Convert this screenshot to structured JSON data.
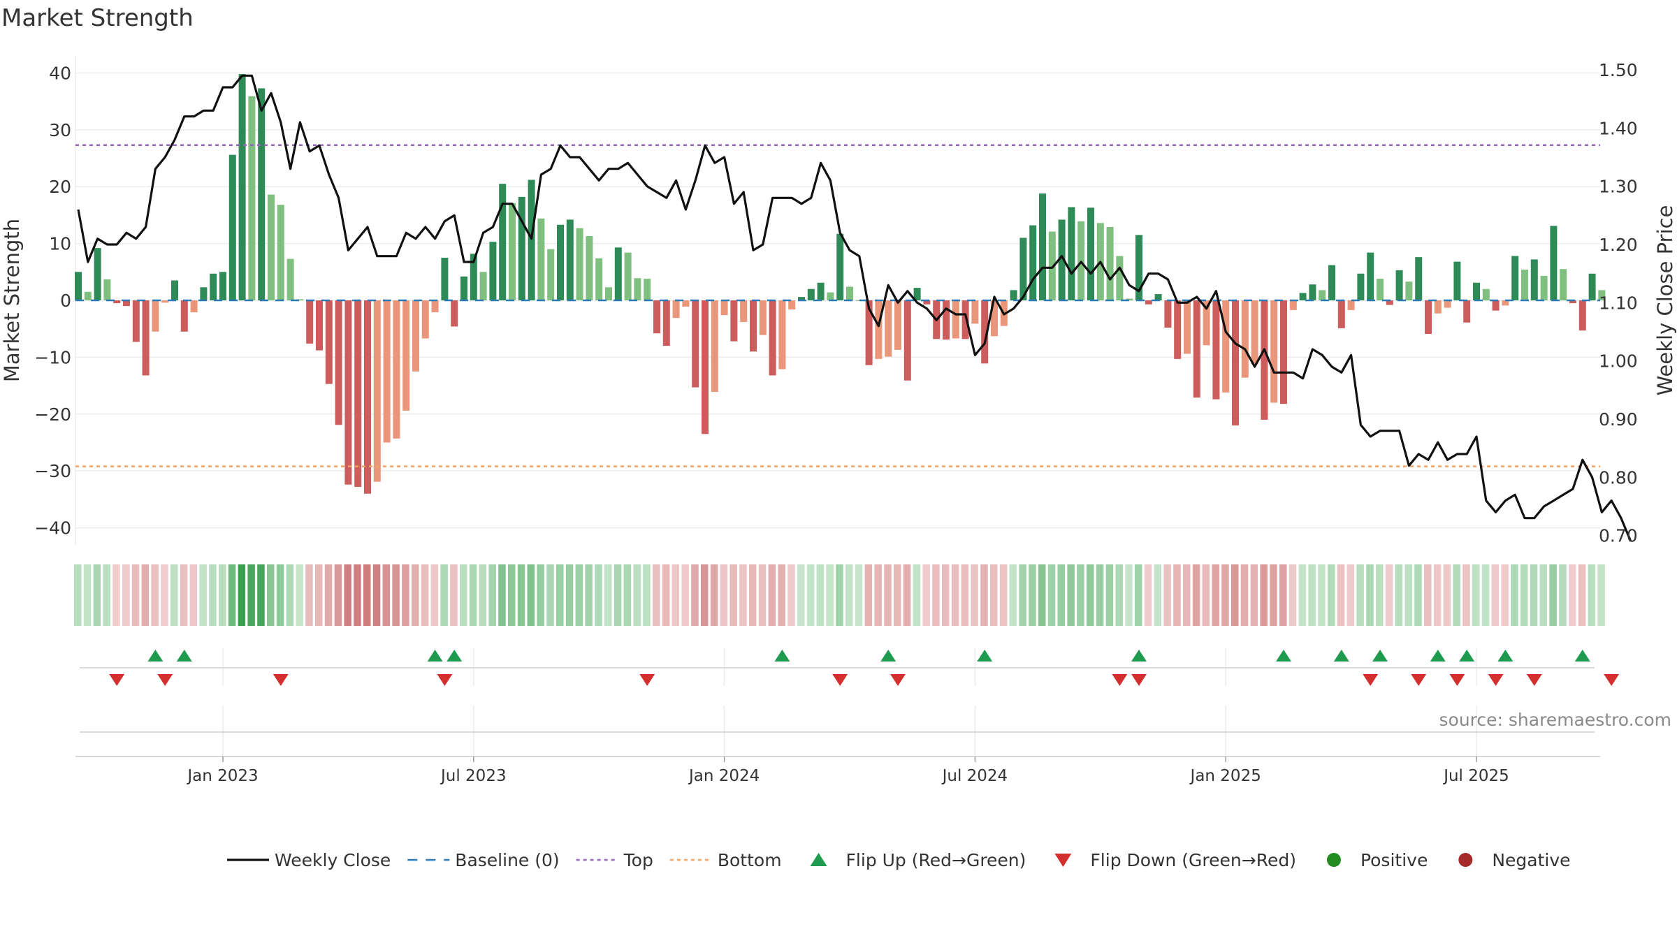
{
  "chart_data": {
    "type": "bar",
    "title": "Market Strength",
    "ylabel_left": "Market Strength",
    "ylabel_right": "Weekly Close Price",
    "ylim_left": [
      -43,
      43
    ],
    "ylim_right": [
      0.684,
      1.524
    ],
    "yticks_left": [
      {
        "v": 40,
        "label": "40"
      },
      {
        "v": 30,
        "label": "30"
      },
      {
        "v": 20,
        "label": "20"
      },
      {
        "v": 10,
        "label": "10"
      },
      {
        "v": 0,
        "label": "0"
      },
      {
        "v": -10,
        "label": "−10"
      },
      {
        "v": -20,
        "label": "−20"
      },
      {
        "v": -30,
        "label": "−30"
      },
      {
        "v": -40,
        "label": "−40"
      }
    ],
    "yticks_right": [
      {
        "v": 1.5,
        "label": "1.50"
      },
      {
        "v": 1.4,
        "label": "1.40"
      },
      {
        "v": 1.3,
        "label": "1.30"
      },
      {
        "v": 1.2,
        "label": "1.20"
      },
      {
        "v": 1.1,
        "label": "1.10"
      },
      {
        "v": 1.0,
        "label": "1.00"
      },
      {
        "v": 0.9,
        "label": "0.90"
      },
      {
        "v": 0.8,
        "label": "0.80"
      },
      {
        "v": 0.7,
        "label": "0.70"
      }
    ],
    "x_tick_labels": [
      {
        "i": 15,
        "label": "Jan 2023"
      },
      {
        "i": 41,
        "label": "Jul 2023"
      },
      {
        "i": 67,
        "label": "Jan 2024"
      },
      {
        "i": 93,
        "label": "Jul 2024"
      },
      {
        "i": 119,
        "label": "Jan 2025"
      },
      {
        "i": 145,
        "label": "Jul 2025"
      }
    ],
    "top_line": 27.3,
    "bottom_line": -29.2,
    "baseline": 0,
    "strength": [
      5,
      1.5,
      9.2,
      3.7,
      -0.5,
      -1,
      -7.3,
      -13.2,
      -5.5,
      -0.4,
      3.5,
      -5.5,
      -2.1,
      2.3,
      4.7,
      5,
      25.6,
      39.8,
      35.9,
      37.3,
      18.6,
      16.8,
      7.3,
      0.2,
      -7.6,
      -8.8,
      -14.7,
      -21.9,
      -32.4,
      -32.8,
      -34,
      -31.9,
      -25,
      -24.3,
      -19.4,
      -12.5,
      -6.7,
      -2.1,
      7.5,
      -4.6,
      4.2,
      8.2,
      5,
      10.3,
      20.5,
      17.1,
      18.2,
      21.2,
      14.4,
      9,
      13.3,
      14.2,
      12.7,
      11.3,
      7.4,
      2.3,
      9.3,
      8.4,
      3.9,
      3.8,
      -5.8,
      -8,
      -3.1,
      -1.1,
      -15.3,
      -23.5,
      -16.1,
      -2.6,
      -7.2,
      -3.8,
      -9,
      -6.1,
      -13.2,
      -12.1,
      -1.6,
      0.6,
      2,
      3.1,
      1.4,
      11.7,
      2.4,
      0,
      -11.4,
      -10.3,
      -9.9,
      -8.7,
      -14.1,
      2.2,
      -0.7,
      -6.8,
      -6.9,
      -6.7,
      -6.8,
      -4.1,
      -11.1,
      -6.3,
      -4.5,
      1.8,
      11,
      13.2,
      18.8,
      12.1,
      14.2,
      16.4,
      13.9,
      16.3,
      13.6,
      12.9,
      7.8,
      0.3,
      11.5,
      -0.7,
      1.1,
      -4.8,
      -10.3,
      -9.4,
      -17.1,
      -7.9,
      -17.4,
      -16.2,
      -22,
      -13.6,
      -11.2,
      -21,
      -18,
      -18.2,
      -1.7,
      1.3,
      2.8,
      1.8,
      6.2,
      -4.9,
      -1.7,
      4.7,
      8.4,
      3.8,
      -0.8,
      5.3,
      3.3,
      7.6,
      -5.9,
      -2.3,
      -1.3,
      6.8,
      -3.9,
      3.1,
      2,
      -1.8,
      -0.9,
      7.8,
      5.4,
      7.2,
      4.3,
      13.1,
      5.5,
      -0.5,
      -5.3,
      4.7,
      1.8
    ],
    "weekly_close": [
      1.26,
      1.17,
      1.21,
      1.2,
      1.2,
      1.22,
      1.21,
      1.23,
      1.33,
      1.35,
      1.38,
      1.42,
      1.42,
      1.43,
      1.43,
      1.47,
      1.47,
      1.49,
      1.49,
      1.43,
      1.46,
      1.41,
      1.33,
      1.41,
      1.36,
      1.37,
      1.32,
      1.28,
      1.19,
      1.21,
      1.23,
      1.18,
      1.18,
      1.18,
      1.22,
      1.21,
      1.23,
      1.21,
      1.24,
      1.25,
      1.17,
      1.17,
      1.22,
      1.23,
      1.27,
      1.27,
      1.24,
      1.21,
      1.32,
      1.33,
      1.37,
      1.35,
      1.35,
      1.33,
      1.31,
      1.33,
      1.33,
      1.34,
      1.32,
      1.3,
      1.29,
      1.28,
      1.31,
      1.26,
      1.31,
      1.37,
      1.34,
      1.35,
      1.27,
      1.29,
      1.19,
      1.2,
      1.28,
      1.28,
      1.28,
      1.27,
      1.28,
      1.34,
      1.31,
      1.22,
      1.19,
      1.18,
      1.09,
      1.06,
      1.13,
      1.1,
      1.12,
      1.1,
      1.09,
      1.07,
      1.09,
      1.08,
      1.08,
      1.01,
      1.03,
      1.11,
      1.08,
      1.09,
      1.11,
      1.14,
      1.16,
      1.16,
      1.18,
      1.15,
      1.17,
      1.15,
      1.17,
      1.14,
      1.16,
      1.13,
      1.12,
      1.15,
      1.15,
      1.14,
      1.1,
      1.1,
      1.11,
      1.09,
      1.12,
      1.05,
      1.03,
      1.02,
      0.99,
      1.02,
      0.98,
      0.98,
      0.98,
      0.97,
      1.02,
      1.01,
      0.99,
      0.98,
      1.01,
      0.89,
      0.87,
      0.88,
      0.88,
      0.88,
      0.82,
      0.84,
      0.83,
      0.86,
      0.83,
      0.84,
      0.84,
      0.87,
      0.76,
      0.74,
      0.76,
      0.77,
      0.73,
      0.73,
      0.75,
      0.76,
      0.77,
      0.78,
      0.83,
      0.8,
      0.74,
      0.76,
      0.73,
      0.69
    ],
    "flip_up_idx": [
      8,
      11,
      37,
      39,
      73,
      84,
      94,
      110,
      125,
      131,
      135,
      141,
      144,
      148,
      156
    ],
    "flip_down_idx": [
      4,
      9,
      21,
      38,
      59,
      79,
      85,
      108,
      110,
      134,
      139,
      143,
      147,
      151,
      159
    ],
    "legend": [
      {
        "kind": "line",
        "label": "Weekly Close",
        "color": "#111111"
      },
      {
        "kind": "dash",
        "label": "Baseline (0)",
        "color": "#2c7bb6"
      },
      {
        "kind": "dot",
        "label": "Top",
        "color": "#9467bd"
      },
      {
        "kind": "dot",
        "label": "Bottom",
        "color": "#f4a261"
      },
      {
        "kind": "up",
        "label": "Flip Up (Red→Green)",
        "color": "#1e9b4f"
      },
      {
        "kind": "down",
        "label": "Flip Down (Green→Red)",
        "color": "#d32f2f"
      },
      {
        "kind": "circle",
        "label": "Positive",
        "color": "#228b22"
      },
      {
        "kind": "circle",
        "label": "Negative",
        "color": "#a52a2a"
      }
    ],
    "legend_placement": "bottom-center",
    "colors": {
      "strong_green": "#2e8b57",
      "light_green": "#7fbf7f",
      "strong_red": "#cd5c5c",
      "light_red": "#e9967a",
      "close_line": "#111111",
      "baseline": "#2c7bb6",
      "top": "#9467bd",
      "bottom": "#f4a261"
    }
  },
  "source_text": "source: sharemaestro.com"
}
